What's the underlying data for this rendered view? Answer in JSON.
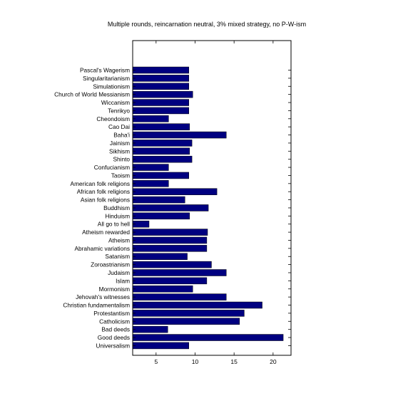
{
  "chart_data": {
    "type": "bar",
    "orientation": "horizontal",
    "title": "Multiple rounds, reincarnation neutral, 3% mixed strategy, no P-W-ism",
    "xlabel": "",
    "ylabel": "",
    "xlim": [
      2,
      22.3
    ],
    "xticks": [
      5,
      10,
      15,
      20
    ],
    "grid": false,
    "bar_color": "#000080",
    "categories": [
      "Pascal's Wagerism",
      "Singularitarianism",
      "Simulationism",
      "Church of World Messianism",
      "Wiccanism",
      "Tenrikyo",
      "Cheondoism",
      "Cao Dai",
      "Baha'i",
      "Jainism",
      "Sikhism",
      "Shinto",
      "Confucianism",
      "Taoism",
      "American folk religions",
      "African folk religions",
      "Asian folk religions",
      "Buddhism",
      "Hinduism",
      "All go to hell",
      "Atheism rewarded",
      "Atheism",
      "Abrahamic variations",
      "Satanism",
      "Zoroastrianism",
      "Judaism",
      "Islam",
      "Mormonism",
      "Jehovah's witnesses",
      "Christian fundamentalism",
      "Protestantism",
      "Catholicism",
      "Bad deeds",
      "Good deeds",
      "Universalism"
    ],
    "values": [
      9.2,
      9.2,
      9.2,
      9.7,
      9.2,
      9.2,
      6.6,
      9.3,
      14.0,
      9.6,
      9.3,
      9.6,
      6.6,
      9.2,
      6.6,
      12.8,
      8.7,
      11.7,
      9.3,
      4.1,
      11.6,
      11.5,
      11.5,
      9.0,
      12.1,
      14.0,
      11.5,
      9.7,
      14.0,
      18.6,
      16.3,
      15.7,
      6.5,
      21.3,
      9.2
    ]
  }
}
